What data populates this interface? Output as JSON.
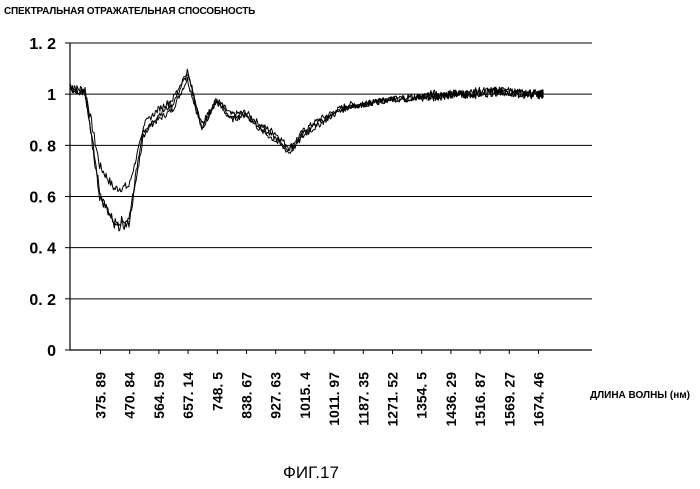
{
  "chart_data": {
    "type": "line",
    "ylabel": "СПЕКТРАЛЬНАЯ ОТРАЖАТЕЛЬНАЯ СПОСОБНОСТЬ",
    "xlabel": "ДЛИНА ВОЛНЫ (нм)",
    "caption": "ФИГ.17",
    "ylim": [
      0,
      1.2
    ],
    "y_ticks": [
      "0",
      "0. 2",
      "0. 4",
      "0. 6",
      "0. 8",
      "1",
      "1. 2"
    ],
    "y_tick_values": [
      0,
      0.2,
      0.4,
      0.6,
      0.8,
      1.0,
      1.2
    ],
    "x_tick_labels": [
      "375. 89",
      "470. 84",
      "564. 59",
      "657. 14",
      "748. 5",
      "838. 67",
      "927. 63",
      "1015. 4",
      "1011. 97",
      "1187. 35",
      "1271. 52",
      "1354. 5",
      "1436. 29",
      "1516. 87",
      "1569. 27",
      "1674. 46"
    ],
    "grid": true,
    "series_color": "#000000",
    "series": [
      {
        "x_index": [
          0,
          0.5,
          1,
          1.5,
          2,
          2.5,
          3,
          3.5,
          4,
          4.5,
          5,
          5.5,
          6,
          6.5,
          7,
          7.5,
          8,
          8.5,
          9,
          9.5,
          10,
          10.5,
          11,
          11.5,
          12,
          12.5,
          13,
          13.5,
          14,
          14.5,
          15,
          15.5,
          16,
          16.2
        ],
        "values": [
          1.02,
          1.02,
          0.72,
          0.63,
          0.64,
          0.86,
          0.9,
          0.94,
          1.06,
          0.86,
          0.98,
          0.92,
          0.93,
          0.88,
          0.85,
          0.79,
          0.86,
          0.9,
          0.93,
          0.96,
          0.96,
          0.97,
          0.98,
          0.98,
          0.99,
          0.99,
          1.0,
          1.0,
          1.0,
          1.01,
          1.01,
          1.0,
          1.0,
          1.0
        ]
      },
      {
        "x_index": [
          0,
          0.5,
          1,
          1.5,
          2,
          2.5,
          3,
          3.5,
          4,
          4.5,
          5,
          5.5,
          6,
          6.5,
          7,
          7.5,
          8,
          8.5,
          9,
          9.5,
          10,
          10.5,
          11,
          11.5,
          12,
          12.5,
          13,
          13.5,
          14,
          14.5,
          15,
          15.5,
          16,
          16.2
        ],
        "values": [
          1.02,
          1.01,
          0.62,
          0.48,
          0.49,
          0.84,
          0.92,
          0.96,
          1.08,
          0.87,
          0.97,
          0.9,
          0.92,
          0.87,
          0.83,
          0.78,
          0.85,
          0.89,
          0.92,
          0.95,
          0.96,
          0.97,
          0.98,
          0.98,
          0.99,
          0.99,
          1.0,
          1.0,
          1.01,
          1.01,
          1.01,
          1.0,
          1.0,
          1.0
        ]
      },
      {
        "x_index": [
          0,
          0.5,
          1,
          1.5,
          2,
          2.5,
          3,
          3.5,
          4,
          4.5,
          5,
          5.5,
          6,
          6.5,
          7,
          7.5,
          8,
          8.5,
          9,
          9.5,
          10,
          10.5,
          11,
          11.5,
          12,
          12.5,
          13,
          13.5,
          14,
          14.5,
          15,
          15.5,
          16,
          16.2
        ],
        "values": [
          1.03,
          1.0,
          0.6,
          0.5,
          0.51,
          0.88,
          0.94,
          0.98,
          1.09,
          0.88,
          0.98,
          0.91,
          0.92,
          0.86,
          0.82,
          0.77,
          0.84,
          0.88,
          0.92,
          0.95,
          0.96,
          0.97,
          0.98,
          0.99,
          0.99,
          1.0,
          1.0,
          1.0,
          1.01,
          1.01,
          1.01,
          1.0,
          1.0,
          1.0
        ]
      }
    ]
  }
}
